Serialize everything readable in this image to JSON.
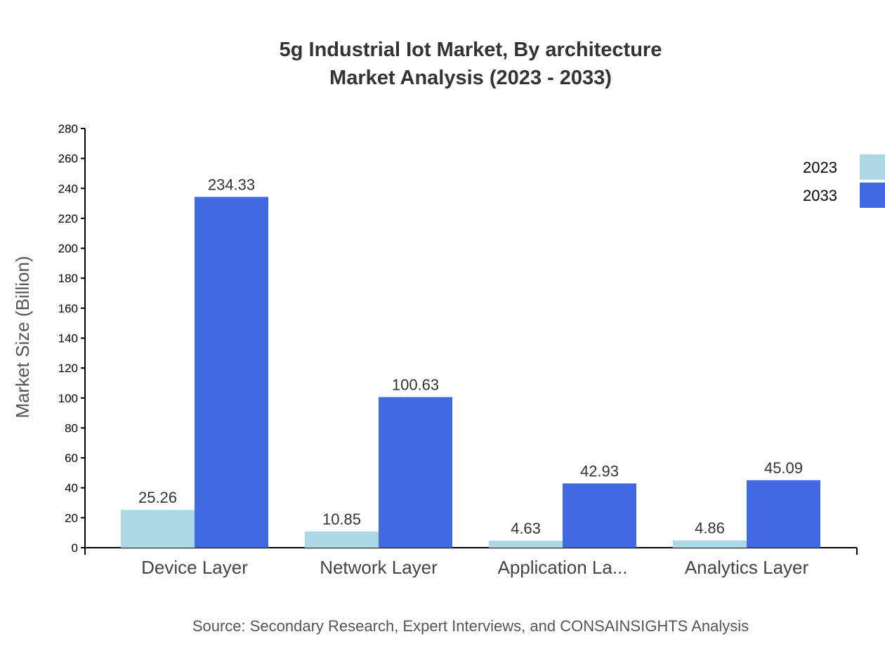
{
  "chart_data": {
    "type": "bar",
    "title": [
      "5g Industrial Iot Market, By architecture",
      "Market Analysis (2023 - 2033)"
    ],
    "ylabel": "Market Size (Billion)",
    "xlabel": "",
    "ylim": [
      0,
      280
    ],
    "yticks": [
      0,
      20,
      40,
      60,
      80,
      100,
      120,
      140,
      160,
      180,
      200,
      220,
      240,
      260,
      280
    ],
    "categories": [
      "Device Layer",
      "Network Layer",
      "Application La...",
      "Analytics Layer"
    ],
    "series": [
      {
        "name": "2023",
        "color": "#add8e6",
        "values": [
          25.26,
          10.85,
          4.63,
          4.86
        ]
      },
      {
        "name": "2033",
        "color": "#4169e1",
        "values": [
          234.33,
          100.63,
          42.93,
          45.09
        ]
      }
    ],
    "legend_position": "top-right",
    "grid": false
  },
  "source": "Source: Secondary Research, Expert Interviews, and CONSAINSIGHTS Analysis"
}
